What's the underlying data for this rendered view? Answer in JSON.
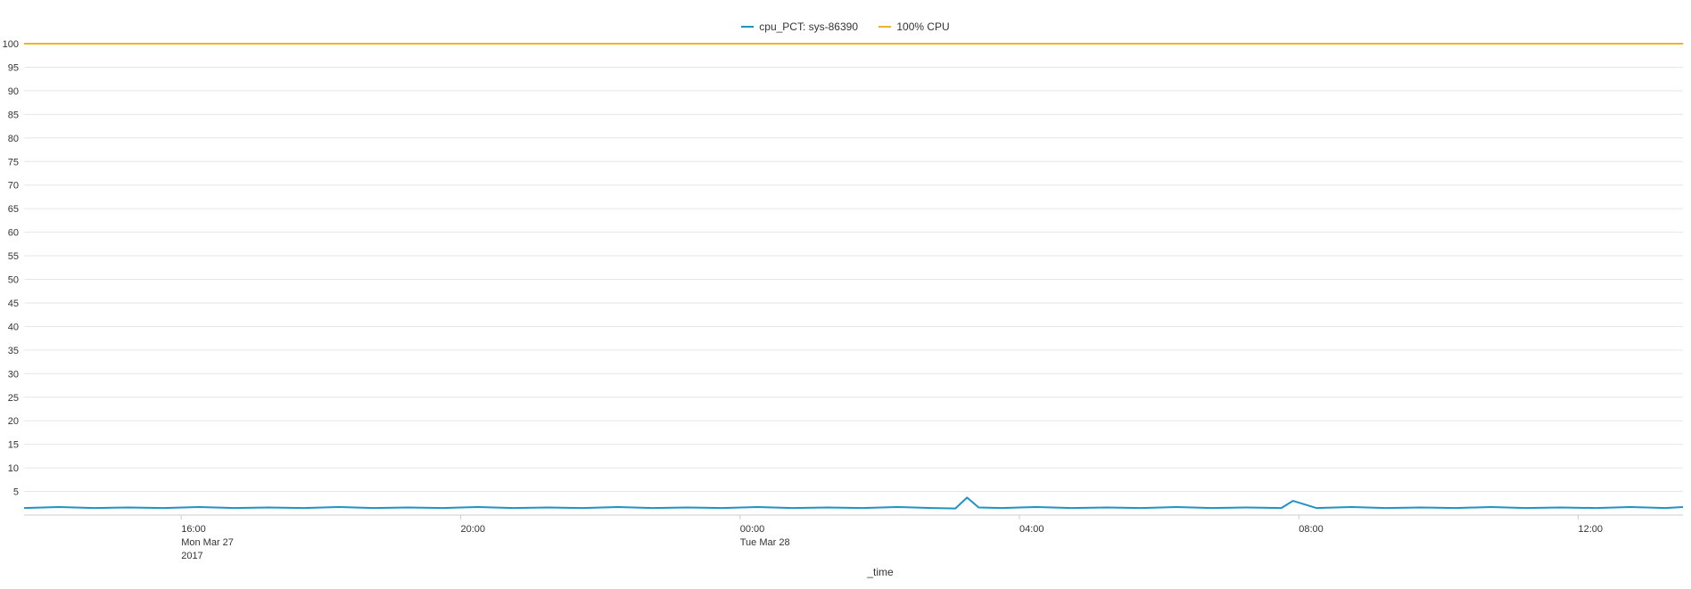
{
  "legend": {
    "items": [
      {
        "label": "cpu_PCT: sys-86390",
        "color": "#1e93c6"
      },
      {
        "label": "100% CPU",
        "color": "#f2b227"
      }
    ]
  },
  "chart_data": {
    "type": "line",
    "xlabel": "_time",
    "ylabel": "",
    "ylim": [
      0,
      100
    ],
    "yticks": [
      5,
      10,
      15,
      20,
      25,
      30,
      35,
      40,
      45,
      50,
      55,
      60,
      65,
      70,
      75,
      80,
      85,
      90,
      95,
      100
    ],
    "xlim": [
      "2017-03-27T13:45",
      "2017-03-28T13:30"
    ],
    "xticks": [
      {
        "t": "2017-03-27T16:00",
        "lines": [
          "16:00",
          "Mon Mar 27",
          "2017"
        ]
      },
      {
        "t": "2017-03-27T20:00",
        "lines": [
          "20:00"
        ]
      },
      {
        "t": "2017-03-28T00:00",
        "lines": [
          "00:00",
          "Tue Mar 28"
        ]
      },
      {
        "t": "2017-03-28T04:00",
        "lines": [
          "04:00"
        ]
      },
      {
        "t": "2017-03-28T08:00",
        "lines": [
          "08:00"
        ]
      },
      {
        "t": "2017-03-28T12:00",
        "lines": [
          "12:00"
        ]
      }
    ],
    "grid": true,
    "legend_position": "top",
    "series": [
      {
        "name": "cpu_PCT: sys-86390",
        "color": "#1e93c6",
        "x": [
          "2017-03-27T13:45",
          "2017-03-27T14:15",
          "2017-03-27T14:45",
          "2017-03-27T15:15",
          "2017-03-27T15:45",
          "2017-03-27T16:15",
          "2017-03-27T16:45",
          "2017-03-27T17:15",
          "2017-03-27T17:45",
          "2017-03-27T18:15",
          "2017-03-27T18:45",
          "2017-03-27T19:15",
          "2017-03-27T19:45",
          "2017-03-27T20:15",
          "2017-03-27T20:45",
          "2017-03-27T21:15",
          "2017-03-27T21:45",
          "2017-03-27T22:15",
          "2017-03-27T22:45",
          "2017-03-27T23:15",
          "2017-03-27T23:45",
          "2017-03-28T00:15",
          "2017-03-28T00:45",
          "2017-03-28T01:15",
          "2017-03-28T01:45",
          "2017-03-28T02:15",
          "2017-03-28T02:45",
          "2017-03-28T03:05",
          "2017-03-28T03:15",
          "2017-03-28T03:25",
          "2017-03-28T03:45",
          "2017-03-28T04:15",
          "2017-03-28T04:45",
          "2017-03-28T05:15",
          "2017-03-28T05:45",
          "2017-03-28T06:15",
          "2017-03-28T06:45",
          "2017-03-28T07:15",
          "2017-03-28T07:45",
          "2017-03-28T07:55",
          "2017-03-28T08:15",
          "2017-03-28T08:45",
          "2017-03-28T09:15",
          "2017-03-28T09:45",
          "2017-03-28T10:15",
          "2017-03-28T10:45",
          "2017-03-28T11:15",
          "2017-03-28T11:45",
          "2017-03-28T12:15",
          "2017-03-28T12:45",
          "2017-03-28T13:15",
          "2017-03-28T13:30"
        ],
        "values": [
          1.5,
          1.7,
          1.5,
          1.6,
          1.5,
          1.7,
          1.5,
          1.6,
          1.5,
          1.7,
          1.5,
          1.6,
          1.5,
          1.7,
          1.5,
          1.6,
          1.5,
          1.7,
          1.5,
          1.6,
          1.5,
          1.7,
          1.5,
          1.6,
          1.5,
          1.7,
          1.5,
          1.4,
          3.7,
          1.6,
          1.5,
          1.7,
          1.5,
          1.6,
          1.5,
          1.7,
          1.5,
          1.6,
          1.5,
          3.0,
          1.5,
          1.7,
          1.5,
          1.6,
          1.5,
          1.7,
          1.5,
          1.6,
          1.5,
          1.7,
          1.5,
          1.7
        ]
      },
      {
        "name": "100% CPU",
        "color": "#f2b227",
        "x": [
          "2017-03-27T13:45",
          "2017-03-28T13:30"
        ],
        "values": [
          100,
          100
        ]
      }
    ]
  }
}
